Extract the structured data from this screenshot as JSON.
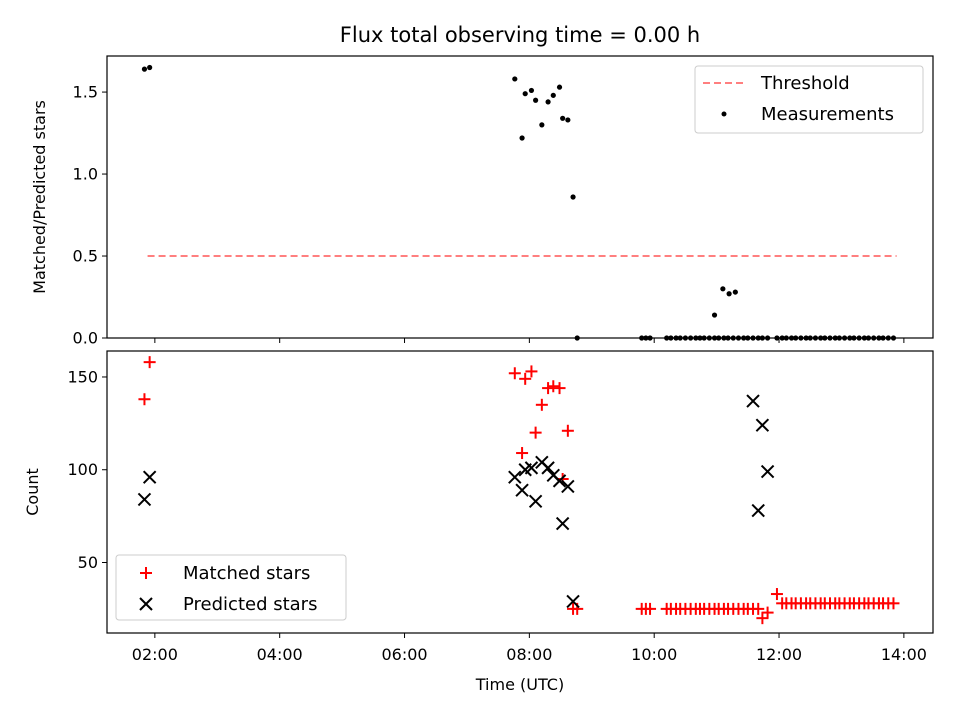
{
  "chart_data": [
    {
      "type": "scatter",
      "title": "Flux total observing time = 0.00 h",
      "xlabel": "",
      "ylabel": "Matched/Predicted stars",
      "xlim": [
        "01:14",
        "14:28"
      ],
      "ylim": [
        0,
        1.72
      ],
      "yticks": [
        0.0,
        0.5,
        1.0,
        1.5
      ],
      "ytick_labels": [
        "0.0",
        "0.5",
        "1.0",
        "1.5"
      ],
      "grid": false,
      "legend": {
        "position": "top-right",
        "entries": [
          "Threshold",
          "Measurements"
        ]
      },
      "series": [
        {
          "name": "Threshold",
          "kind": "line",
          "style": "dashed",
          "color": "#ff7f7f",
          "x": [
            "01:53",
            "13:53"
          ],
          "y": [
            0.5,
            0.5
          ]
        },
        {
          "name": "Measurements",
          "kind": "scatter",
          "color": "#000000",
          "x": [
            "01:50",
            "01:55",
            "07:46",
            "07:53",
            "07:56",
            "08:02",
            "08:06",
            "08:12",
            "08:18",
            "08:23",
            "08:29",
            "08:32",
            "08:37",
            "08:42",
            "08:46",
            "10:58",
            "11:06",
            "11:12",
            "11:18"
          ],
          "y": [
            1.64,
            1.65,
            1.58,
            1.22,
            1.49,
            1.51,
            1.45,
            1.3,
            1.44,
            1.48,
            1.53,
            1.34,
            1.33,
            0.86,
            0.0,
            0.14,
            0.3,
            0.27,
            0.28
          ]
        },
        {
          "name": "Measurements-zero-run",
          "kind": "scatter",
          "color": "#000000",
          "x": [
            "09:48",
            "09:52",
            "09:56",
            "10:12",
            "10:16",
            "10:21",
            "10:25",
            "10:30",
            "10:35",
            "10:40",
            "10:44",
            "10:48",
            "10:53",
            "10:58",
            "11:02",
            "11:07",
            "11:11",
            "11:16",
            "11:21",
            "11:26",
            "11:30",
            "11:35",
            "11:40",
            "11:44",
            "11:49",
            "11:58",
            "12:03",
            "12:07",
            "12:12",
            "12:16",
            "12:21",
            "12:26",
            "12:30",
            "12:35",
            "12:40",
            "12:44",
            "12:49",
            "12:54",
            "12:58",
            "13:03",
            "13:08",
            "13:12",
            "13:17",
            "13:22",
            "13:26",
            "13:31",
            "13:36",
            "13:40",
            "13:45",
            "13:50"
          ],
          "y": [
            0,
            0,
            0,
            0,
            0,
            0,
            0,
            0,
            0,
            0,
            0,
            0,
            0,
            0,
            0,
            0,
            0,
            0,
            0,
            0,
            0,
            0,
            0,
            0,
            0,
            0,
            0,
            0,
            0,
            0,
            0,
            0,
            0,
            0,
            0,
            0,
            0,
            0,
            0,
            0,
            0,
            0,
            0,
            0,
            0,
            0,
            0,
            0,
            0,
            0
          ]
        }
      ]
    },
    {
      "type": "scatter",
      "title": "",
      "xlabel": "Time (UTC)",
      "ylabel": "Count",
      "xlim": [
        "01:14",
        "14:28"
      ],
      "ylim": [
        12,
        164
      ],
      "yticks": [
        50,
        100,
        150
      ],
      "ytick_labels": [
        "50",
        "100",
        "150"
      ],
      "xticks": [
        "02:00",
        "04:00",
        "06:00",
        "08:00",
        "10:00",
        "12:00",
        "14:00"
      ],
      "xtick_labels": [
        "02:00",
        "04:00",
        "06:00",
        "08:00",
        "10:00",
        "12:00",
        "14:00"
      ],
      "grid": false,
      "legend": {
        "position": "bottom-left",
        "entries": [
          "Matched stars",
          "Predicted stars"
        ]
      },
      "series": [
        {
          "name": "Matched stars",
          "marker": "plus",
          "color": "#ff0000",
          "x": [
            "01:50",
            "01:55",
            "07:46",
            "07:53",
            "07:56",
            "08:02",
            "08:06",
            "08:12",
            "08:18",
            "08:23",
            "08:29",
            "08:32",
            "08:37",
            "08:42",
            "08:46",
            "09:48",
            "09:52",
            "09:56",
            "10:12",
            "10:16",
            "10:21",
            "10:25",
            "10:30",
            "10:35",
            "10:40",
            "10:44",
            "10:48",
            "10:53",
            "10:58",
            "11:02",
            "11:07",
            "11:11",
            "11:16",
            "11:21",
            "11:26",
            "11:30",
            "11:35",
            "11:40",
            "11:44",
            "11:49",
            "11:58",
            "12:03",
            "12:07",
            "12:12",
            "12:16",
            "12:21",
            "12:26",
            "12:30",
            "12:35",
            "12:40",
            "12:44",
            "12:49",
            "12:54",
            "12:58",
            "13:03",
            "13:08",
            "13:12",
            "13:17",
            "13:22",
            "13:26",
            "13:31",
            "13:36",
            "13:40",
            "13:45",
            "13:50"
          ],
          "y": [
            138,
            158,
            152,
            109,
            149,
            153,
            120,
            135,
            144,
            145,
            144,
            95,
            121,
            25,
            25,
            25,
            25,
            25,
            25,
            25,
            25,
            25,
            25,
            25,
            25,
            25,
            25,
            25,
            25,
            25,
            25,
            25,
            25,
            25,
            25,
            25,
            25,
            25,
            20,
            23,
            33,
            28,
            28,
            28,
            28,
            28,
            28,
            28,
            28,
            28,
            28,
            28,
            28,
            28,
            28,
            28,
            28,
            28,
            28,
            28,
            28,
            28,
            28,
            28,
            28
          ]
        },
        {
          "name": "Predicted stars",
          "marker": "x",
          "color": "#000000",
          "x": [
            "01:50",
            "01:55",
            "07:46",
            "07:53",
            "07:56",
            "08:02",
            "08:06",
            "08:12",
            "08:18",
            "08:23",
            "08:29",
            "08:32",
            "08:37",
            "08:42",
            "11:35",
            "11:40",
            "11:44",
            "11:49"
          ],
          "y": [
            84,
            96,
            96,
            89,
            100,
            101,
            83,
            104,
            101,
            97,
            94,
            71,
            91,
            29,
            137,
            78,
            124,
            99
          ]
        }
      ]
    }
  ]
}
